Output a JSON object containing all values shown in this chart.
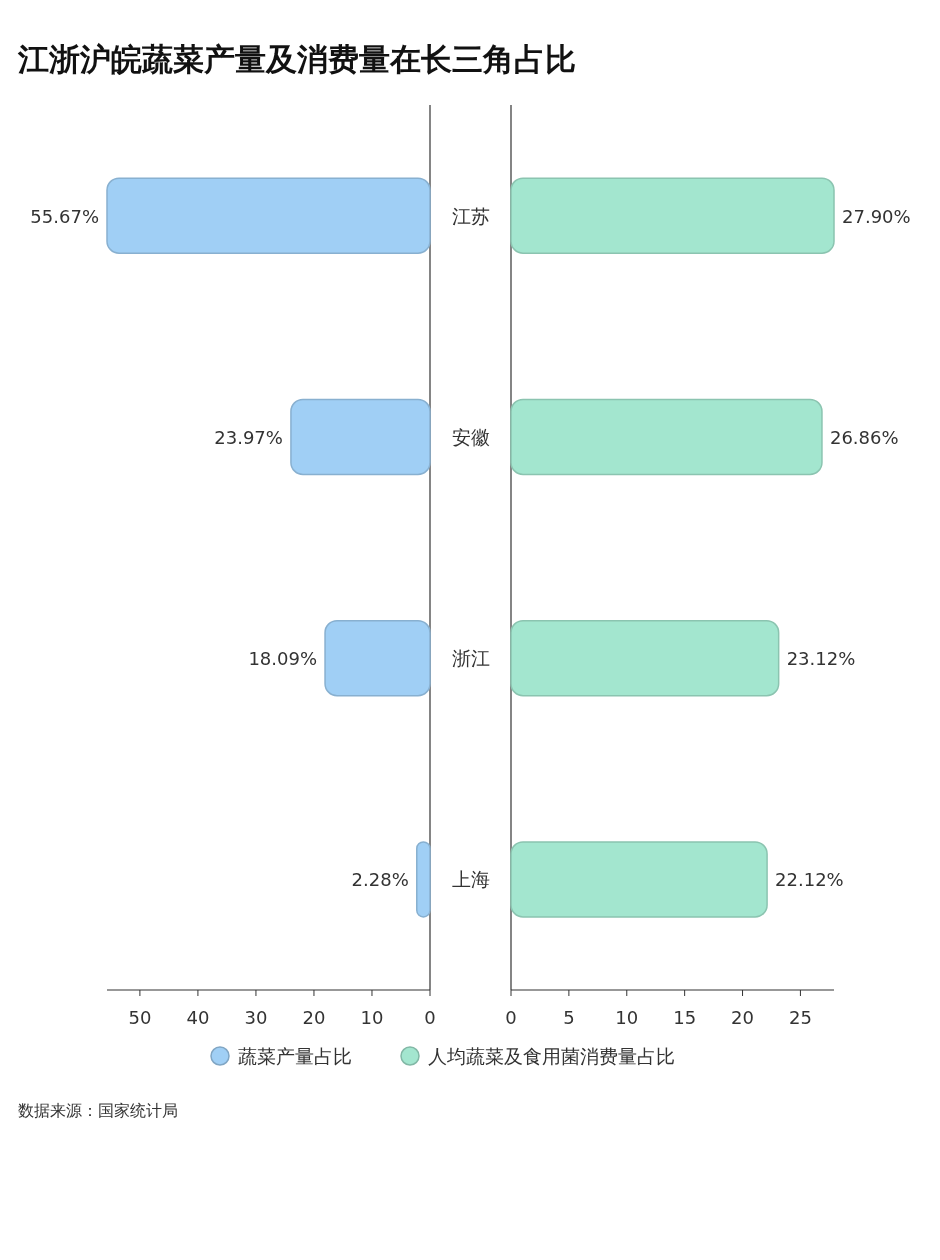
{
  "chart_data": [
    {
      "type": "bar",
      "orientation": "horizontal",
      "title": "江浙沪皖蔬菜产量及消费量在长三角占比",
      "categories": [
        "江苏",
        "安徽",
        "浙江",
        "上海"
      ],
      "series": [
        {
          "name": "蔬菜产量占比",
          "color": "#a0cff5",
          "values": [
            55.67,
            23.97,
            18.09,
            2.28
          ],
          "value_labels": [
            "55.67%",
            "23.97%",
            "18.09%",
            "2.28%"
          ]
        }
      ],
      "xlim": [
        55.67,
        0
      ],
      "xticks": [
        50,
        40,
        30,
        20,
        10,
        0
      ],
      "legend": "bottom",
      "annotations": [
        "数据来源：国家统计局"
      ]
    },
    {
      "type": "bar",
      "orientation": "horizontal",
      "series": [
        {
          "name": "人均蔬菜及食用菌消费量占比",
          "color": "#a3e6cf",
          "values": [
            27.9,
            26.86,
            23.12,
            22.12
          ],
          "value_labels": [
            "27.90%",
            "26.86%",
            "23.12%",
            "22.12%"
          ]
        }
      ],
      "xlim": [
        0,
        27.9
      ],
      "xticks": [
        0,
        5,
        10,
        15,
        20,
        25
      ],
      "legend": "bottom"
    }
  ]
}
